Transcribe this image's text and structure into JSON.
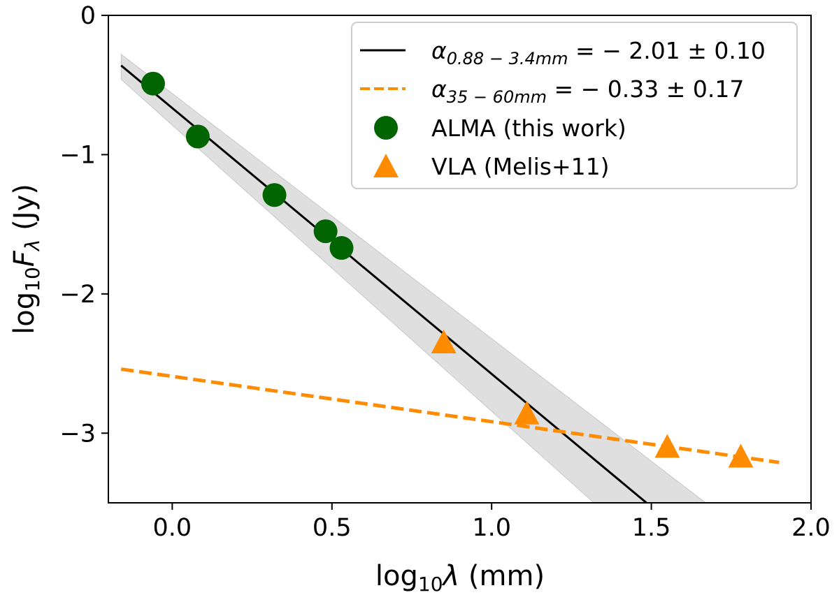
{
  "chart_data": {
    "type": "scatter",
    "title": "",
    "xlabel": "log₁₀λ (mm)",
    "ylabel": "log₁₀F_λ (Jy)",
    "xlim": [
      -0.2,
      2.0
    ],
    "ylim": [
      -3.5,
      0.0
    ],
    "x_ticks": [
      {
        "value": 0.0,
        "label": "0.0"
      },
      {
        "value": 0.5,
        "label": "0.5"
      },
      {
        "value": 1.0,
        "label": "1.0"
      },
      {
        "value": 1.5,
        "label": "1.5"
      },
      {
        "value": 2.0,
        "label": "2.0"
      }
    ],
    "y_ticks": [
      {
        "value": 0,
        "label": "0"
      },
      {
        "value": -1,
        "label": "−1"
      },
      {
        "value": -2,
        "label": "−2"
      },
      {
        "value": -3,
        "label": "−3"
      }
    ],
    "grid": false,
    "legend_position": "top-right",
    "series": [
      {
        "name": "α0.88 − 3.4mm = − 2.01 ± 0.10",
        "kind": "line",
        "style": "solid",
        "color": "#000000",
        "x": [
          -0.16,
          1.49
        ],
        "y": [
          -0.36,
          -3.51
        ],
        "uncertainty_band": {
          "color": "#d9d9d9",
          "x": [
            -0.16,
            -0.16,
            1.32,
            1.67
          ],
          "y_bounds": [
            [
              -0.28,
              -0.46
            ],
            [
              -3.5,
              -3.5
            ]
          ]
        }
      },
      {
        "name": "α35 − 60mm = − 0.33 ± 0.17",
        "kind": "line",
        "style": "dashed",
        "color": "#ff8c00",
        "x": [
          -0.16,
          1.9
        ],
        "y": [
          -2.54,
          -3.21
        ]
      },
      {
        "name": "ALMA (this work)",
        "kind": "scatter",
        "marker": "circle",
        "color": "#006400",
        "x": [
          -0.06,
          0.08,
          0.32,
          0.48,
          0.53
        ],
        "y": [
          -0.49,
          -0.87,
          -1.29,
          -1.55,
          -1.67
        ]
      },
      {
        "name": "VLA (Melis+11)",
        "kind": "scatter",
        "marker": "triangle",
        "color": "#ff8c00",
        "x": [
          0.85,
          1.11,
          1.55,
          1.78
        ],
        "y": [
          -2.35,
          -2.86,
          -3.1,
          -3.17
        ]
      }
    ]
  },
  "legend": {
    "items": [
      {
        "prefix": "α",
        "sub": "0.88 − 3.4mm",
        "suffix": " = − 2.01 ± 0.10",
        "kind": "solid",
        "color": "#000000"
      },
      {
        "prefix": "α",
        "sub": "35 − 60mm",
        "suffix": " = − 0.33 ± 0.17",
        "kind": "dashed",
        "color": "#ff8c00"
      },
      {
        "label": "ALMA (this work)",
        "kind": "circle",
        "color": "#006400"
      },
      {
        "label": "VLA (Melis+11)",
        "kind": "triangle",
        "color": "#ff8c00"
      }
    ]
  },
  "axis_labels": {
    "x": {
      "base": "log",
      "sub": "10",
      "var": "λ",
      "unit": " (mm)"
    },
    "y": {
      "base": "log",
      "sub": "10",
      "var": "F",
      "var_sub": "λ",
      "unit": " (Jy)"
    }
  }
}
